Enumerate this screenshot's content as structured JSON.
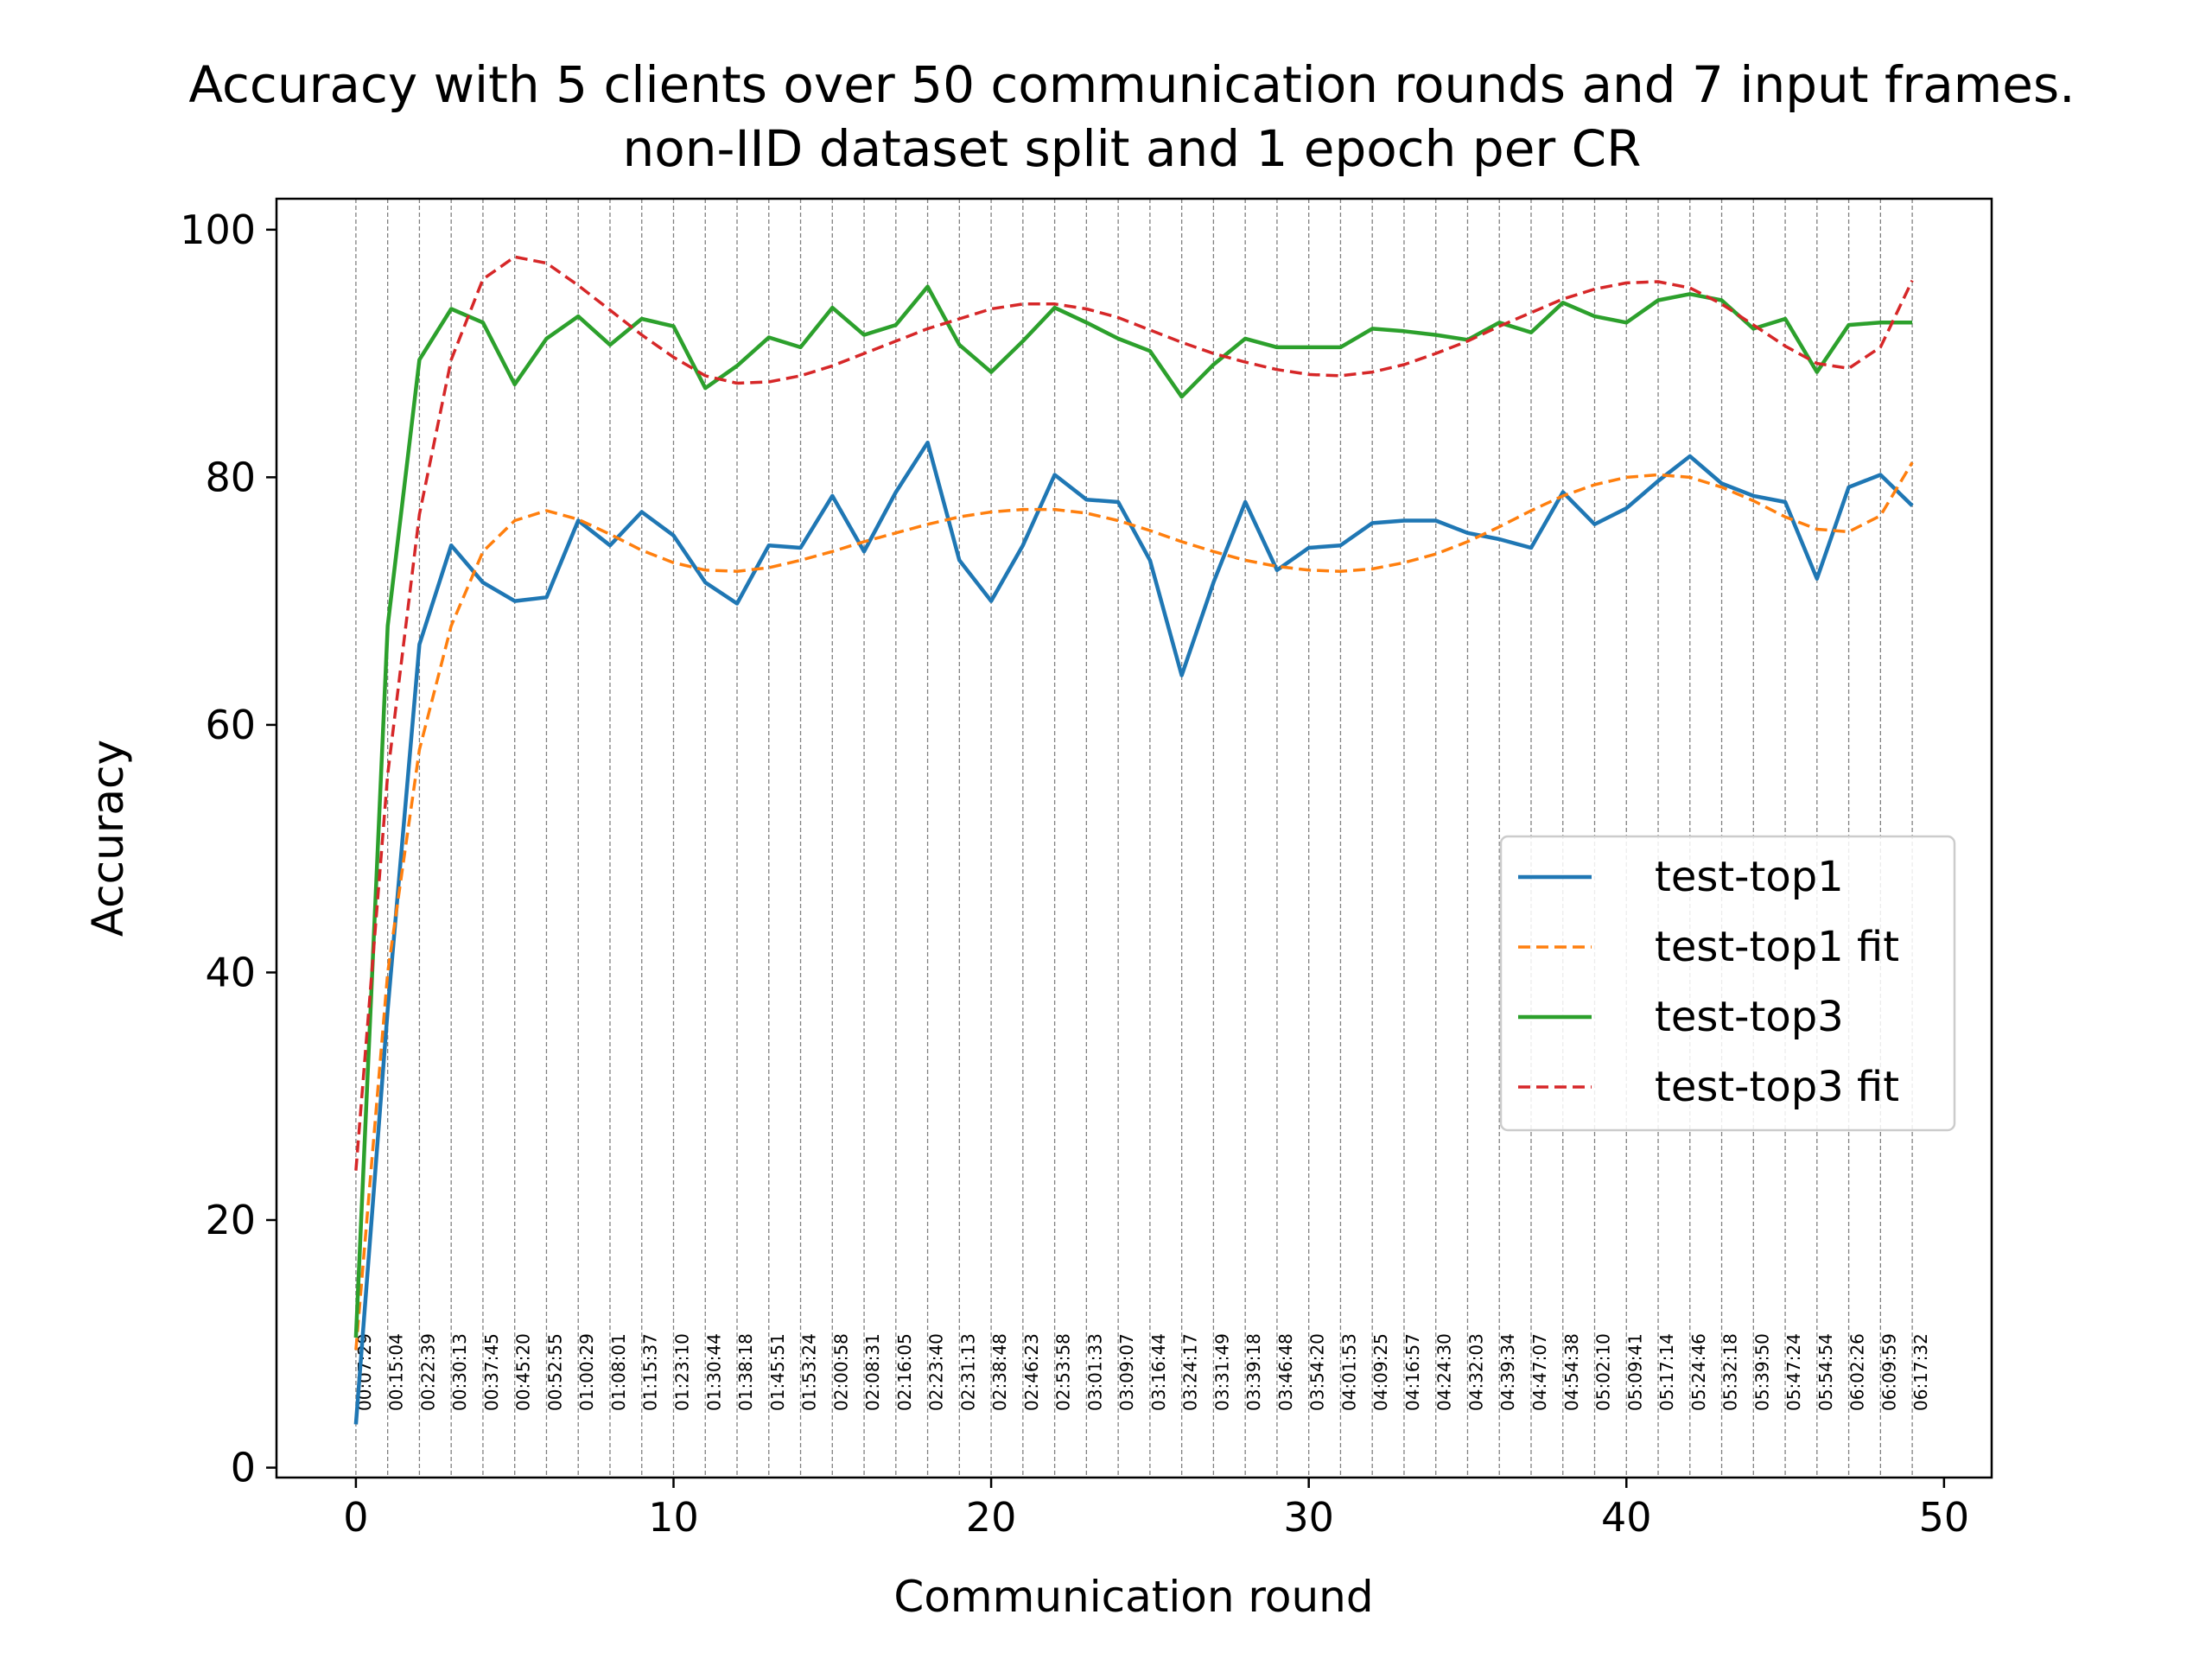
{
  "chart_data": {
    "type": "line",
    "title": "Accuracy with 5 clients over 50 communication rounds and 7 input frames.",
    "subtitle": "non-IID dataset split and 1 epoch per CR",
    "xlabel": "Communication round",
    "ylabel": "Accuracy",
    "xlim": [
      -2.5,
      51.5
    ],
    "ylim": [
      -0.8,
      102.5
    ],
    "xticks": [
      0,
      10,
      20,
      30,
      40,
      50
    ],
    "yticks": [
      0,
      20,
      40,
      60,
      80,
      100
    ],
    "grid": false,
    "legend_position": "center-right",
    "x": [
      0,
      1,
      2,
      3,
      4,
      5,
      6,
      7,
      8,
      9,
      10,
      11,
      12,
      13,
      14,
      15,
      16,
      17,
      18,
      19,
      20,
      21,
      22,
      23,
      24,
      25,
      26,
      27,
      28,
      29,
      30,
      31,
      32,
      33,
      34,
      35,
      36,
      37,
      38,
      39,
      40,
      41,
      42,
      43,
      44,
      45,
      46,
      47,
      48,
      49
    ],
    "series": [
      {
        "name": "test-top1",
        "style": "solid",
        "color": "#1f77b4",
        "values": [
          3.5,
          37,
          66.5,
          74.5,
          71.5,
          70,
          70.3,
          76.5,
          74.5,
          77.2,
          75.3,
          71.5,
          69.8,
          74.5,
          74.3,
          78.5,
          74,
          78.8,
          82.8,
          73.3,
          70,
          74.5,
          80.2,
          78.2,
          78,
          73.3,
          64,
          71.5,
          78,
          72.5,
          74.3,
          74.5,
          76.3,
          76.5,
          76.5,
          75.5,
          75,
          74.3,
          78.8,
          76.2,
          77.5,
          79.7,
          81.7,
          79.5,
          78.5,
          78,
          71.8,
          79.2,
          80.2,
          77.7
        ]
      },
      {
        "name": "test-top1 fit",
        "style": "dashed",
        "color": "#ff7f0e",
        "values": [
          9.5,
          40,
          58,
          68,
          74,
          76.5,
          77.3,
          76.6,
          75.4,
          74.1,
          73.1,
          72.5,
          72.4,
          72.7,
          73.3,
          74,
          74.8,
          75.5,
          76.2,
          76.8,
          77.2,
          77.4,
          77.4,
          77.1,
          76.5,
          75.7,
          74.8,
          74,
          73.3,
          72.8,
          72.5,
          72.4,
          72.6,
          73.1,
          73.8,
          74.8,
          76,
          77.3,
          78.5,
          79.4,
          80,
          80.2,
          80,
          79.2,
          78.1,
          76.8,
          75.8,
          75.6,
          76.9,
          81.2
        ]
      },
      {
        "name": "test-top3",
        "style": "solid",
        "color": "#2ca02c",
        "values": [
          10.5,
          68,
          89.5,
          93.6,
          92.5,
          87.5,
          91.2,
          93,
          90.7,
          92.8,
          92.2,
          87.2,
          89,
          91.3,
          90.5,
          93.7,
          91.5,
          92.3,
          95.4,
          90.7,
          88.5,
          91,
          93.7,
          92.5,
          91.2,
          90.2,
          86.5,
          89.1,
          91.2,
          90.5,
          90.5,
          90.5,
          92,
          91.8,
          91.5,
          91.1,
          92.5,
          91.7,
          94.1,
          93,
          92.5,
          94.3,
          94.8,
          94.3,
          92,
          92.8,
          88.5,
          92.3,
          92.5,
          92.5
        ]
      },
      {
        "name": "test-top3 fit",
        "style": "dashed",
        "color": "#d62728",
        "values": [
          24,
          56,
          77,
          89.5,
          96,
          97.8,
          97.3,
          95.5,
          93.5,
          91.5,
          89.7,
          88.2,
          87.6,
          87.7,
          88.2,
          89,
          90,
          91,
          92,
          92.8,
          93.6,
          94,
          94,
          93.6,
          92.9,
          91.9,
          90.9,
          90,
          89.3,
          88.7,
          88.3,
          88.2,
          88.5,
          89.1,
          90,
          91,
          92.2,
          93.3,
          94.4,
          95.2,
          95.7,
          95.8,
          95.3,
          94,
          92.3,
          90.6,
          89.2,
          88.8,
          90.5,
          95.9
        ]
      }
    ],
    "annotations": [
      "00:07:29",
      "00:15:04",
      "00:22:39",
      "00:30:13",
      "00:37:45",
      "00:45:20",
      "00:52:55",
      "01:00:29",
      "01:08:01",
      "01:15:37",
      "01:23:10",
      "01:30:44",
      "01:38:18",
      "01:45:51",
      "01:53:24",
      "02:00:58",
      "02:08:31",
      "02:16:05",
      "02:23:40",
      "02:31:13",
      "02:38:48",
      "02:46:23",
      "02:53:58",
      "03:01:33",
      "03:09:07",
      "03:16:44",
      "03:24:17",
      "03:31:49",
      "03:39:18",
      "03:46:48",
      "03:54:20",
      "04:01:53",
      "04:09:25",
      "04:16:57",
      "04:24:30",
      "04:32:03",
      "04:39:34",
      "04:47:07",
      "04:54:38",
      "05:02:10",
      "05:09:41",
      "05:17:14",
      "05:24:46",
      "05:32:18",
      "05:39:50",
      "05:47:24",
      "05:54:54",
      "06:02:26",
      "06:09:59",
      "06:17:32"
    ]
  }
}
